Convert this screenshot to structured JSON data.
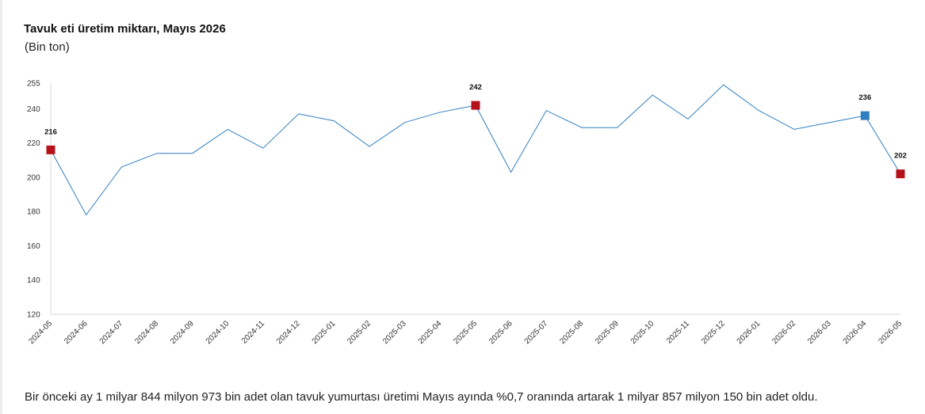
{
  "header": {
    "cut_text": "",
    "title": "Tavuk eti üretim miktarı, Mayıs 2026",
    "subtitle": "(Bin ton)"
  },
  "chart_data": {
    "type": "line",
    "title": "Tavuk eti üretim miktarı, Mayıs 2026",
    "subtitle": "(Bin ton)",
    "xlabel": "",
    "ylabel": "",
    "ylim": [
      120,
      255
    ],
    "yticks": [
      120,
      140,
      160,
      180,
      200,
      220,
      240,
      255
    ],
    "grid": false,
    "categories": [
      "2024-05",
      "2024-06",
      "2024-07",
      "2024-08",
      "2024-09",
      "2024-10",
      "2024-11",
      "2024-12",
      "2025-01",
      "2025-02",
      "2025-03",
      "2025-04",
      "2025-05",
      "2025-06",
      "2025-07",
      "2025-08",
      "2025-09",
      "2025-10",
      "2025-11",
      "2025-12",
      "2026-01",
      "2026-02",
      "2026-03",
      "2026-04",
      "2026-05"
    ],
    "series": [
      {
        "values": [
          216,
          178,
          206,
          214,
          214,
          228,
          217,
          237,
          233,
          218,
          232,
          238,
          242,
          203,
          239,
          229,
          229,
          248,
          234,
          254,
          239,
          228,
          232,
          236,
          202
        ]
      }
    ],
    "highlighted_points": [
      {
        "category": "2024-05",
        "value": 216,
        "label": "216",
        "color": "#b5121b"
      },
      {
        "category": "2025-05",
        "value": 242,
        "label": "242",
        "color": "#b5121b"
      },
      {
        "category": "2026-04",
        "value": 236,
        "label": "236",
        "color": "#2f7fc1"
      },
      {
        "category": "2026-05",
        "value": 202,
        "label": "202",
        "color": "#b5121b"
      }
    ],
    "colors": {
      "line": "#2f7fc1",
      "highlight_red": "#b5121b",
      "highlight_blue": "#2f7fc1"
    }
  },
  "footer": {
    "text": "Bir önceki ay 1 milyar 844 milyon 973 bin adet olan tavuk yumurtası üretimi Mayıs ayında %0,7 oranında artarak 1 milyar 857 milyon 150 bin adet oldu."
  }
}
